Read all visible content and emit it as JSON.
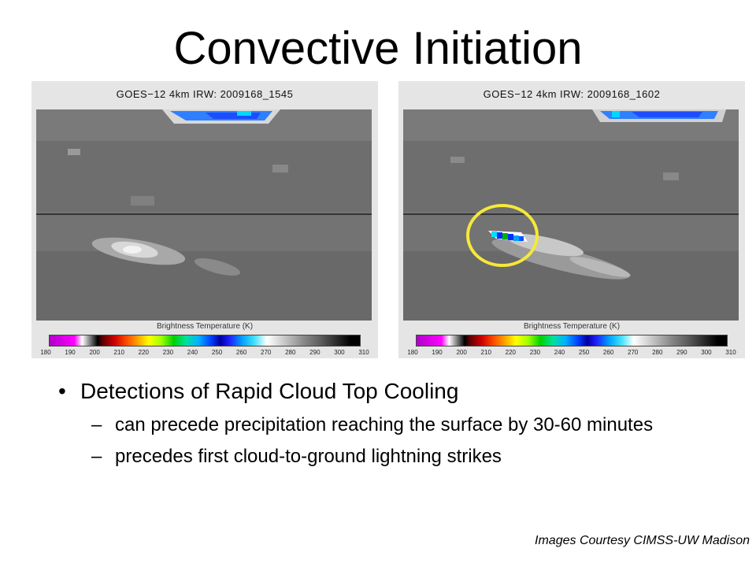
{
  "slide": {
    "title": "Convective Initiation",
    "credit": "Images Courtesy CIMSS-UW Madison"
  },
  "panels": [
    {
      "title": "GOES−12 4km IRW: 2009168_1545",
      "scale_label": "Brightness Temperature (K)"
    },
    {
      "title": "GOES−12 4km IRW: 2009168_1602",
      "scale_label": "Brightness Temperature (K)"
    }
  ],
  "colorbar": {
    "ticks": [
      "180",
      "190",
      "200",
      "210",
      "220",
      "230",
      "240",
      "250",
      "260",
      "270",
      "280",
      "290",
      "300",
      "310"
    ],
    "range_K": [
      180,
      310
    ]
  },
  "highlight": {
    "color": "#f5e83a",
    "panel": 2
  },
  "bullets": {
    "main": "Detections of Rapid Cloud Top Cooling",
    "sub": [
      "can precede precipitation reaching the surface by 30-60 minutes",
      "precedes first cloud-to-ground lightning strikes"
    ]
  },
  "glyphs": {
    "bullet": "•",
    "dash": "–"
  }
}
